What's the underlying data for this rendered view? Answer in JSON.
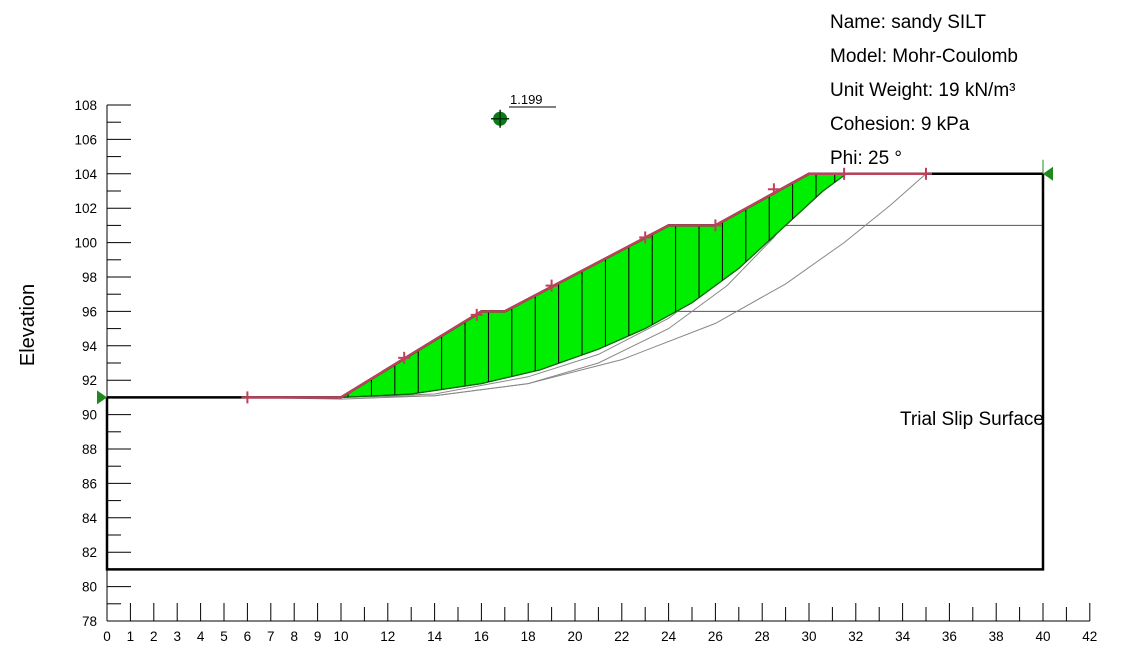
{
  "material": {
    "name_line": "Name: sandy SILT",
    "model_line": "Model: Mohr-Coulomb",
    "unit_weight_line": "Unit Weight: 19 kN/m³",
    "cohesion_line": "Cohesion: 9 kPa",
    "phi_line": "Phi: 25 °"
  },
  "axis": {
    "ylabel": "Elevation",
    "y_ticks": [
      78,
      80,
      82,
      84,
      86,
      88,
      90,
      92,
      94,
      96,
      98,
      100,
      102,
      104,
      106,
      108
    ],
    "x_ticks": [
      0,
      1,
      2,
      3,
      4,
      5,
      6,
      7,
      8,
      9,
      10,
      12,
      14,
      16,
      18,
      20,
      22,
      24,
      26,
      28,
      30,
      32,
      34,
      36,
      38,
      40,
      42
    ],
    "xlim": [
      0,
      42
    ],
    "ylim": [
      78,
      108
    ]
  },
  "annotation": "Trial Slip Surface",
  "critical": {
    "factor_of_safety": "1.199",
    "center": [
      16.8,
      107.2
    ]
  },
  "colors": {
    "slip_fill": "#00ee00",
    "ground_line": "#c0405a",
    "boundary": "#000000",
    "center_marker": "#0a7a1a",
    "support_marker": "#1e8a1e"
  },
  "chart_data": {
    "type": "diagram",
    "ground_profile": [
      [
        0,
        91
      ],
      [
        10,
        91
      ],
      [
        16,
        96
      ],
      [
        17,
        96
      ],
      [
        24,
        101
      ],
      [
        26,
        101
      ],
      [
        30,
        104
      ],
      [
        40,
        104
      ]
    ],
    "domain_boundary": [
      [
        0,
        91
      ],
      [
        0,
        81
      ],
      [
        40,
        81
      ],
      [
        40,
        104
      ]
    ],
    "water_lines": [
      [
        [
          17,
          96
        ],
        [
          40,
          96
        ]
      ],
      [
        [
          26,
          101
        ],
        [
          40,
          101
        ]
      ]
    ],
    "surface_points": [
      [
        6,
        91
      ],
      [
        12.7,
        93.3
      ],
      [
        15.8,
        95.8
      ],
      [
        19,
        97.5
      ],
      [
        23,
        100.3
      ],
      [
        26,
        101
      ],
      [
        28.5,
        103.1
      ],
      [
        31.5,
        104
      ],
      [
        35,
        104
      ]
    ],
    "critical_slip": [
      [
        10,
        91
      ],
      [
        13,
        91.2
      ],
      [
        16,
        91.8
      ],
      [
        18.5,
        92.6
      ],
      [
        21,
        93.8
      ],
      [
        23,
        95
      ],
      [
        25,
        96.5
      ],
      [
        27,
        98.5
      ],
      [
        29,
        101
      ],
      [
        30.6,
        103
      ],
      [
        31.6,
        104
      ]
    ],
    "trial_slips": [
      [
        [
          10,
          91
        ],
        [
          14,
          91.1
        ],
        [
          18,
          91.8
        ],
        [
          21,
          93
        ],
        [
          24,
          95
        ],
        [
          26.5,
          97.5
        ],
        [
          28.5,
          100.3
        ],
        [
          30,
          103
        ]
      ],
      [
        [
          10,
          91
        ],
        [
          14,
          91.2
        ],
        [
          18,
          92.2
        ],
        [
          21,
          93.5
        ],
        [
          24,
          95.6
        ],
        [
          26.5,
          98.2
        ],
        [
          28.5,
          101.1
        ],
        [
          29.8,
          103.5
        ]
      ],
      [
        [
          6,
          91
        ],
        [
          10,
          90.9
        ],
        [
          14,
          91.1
        ],
        [
          18,
          91.8
        ],
        [
          22,
          93.2
        ],
        [
          26,
          95.3
        ],
        [
          29,
          97.6
        ],
        [
          31.5,
          100
        ],
        [
          33.5,
          102.2
        ],
        [
          35,
          104
        ]
      ]
    ],
    "slice_x": [
      10.3,
      11.3,
      12.3,
      13.3,
      14.3,
      15.3,
      16.3,
      17.3,
      18.3,
      19.3,
      20.3,
      21.3,
      22.3,
      23.3,
      24.3,
      25.3,
      26.3,
      27.3,
      28.3,
      29.3,
      30.3,
      31.1
    ]
  }
}
